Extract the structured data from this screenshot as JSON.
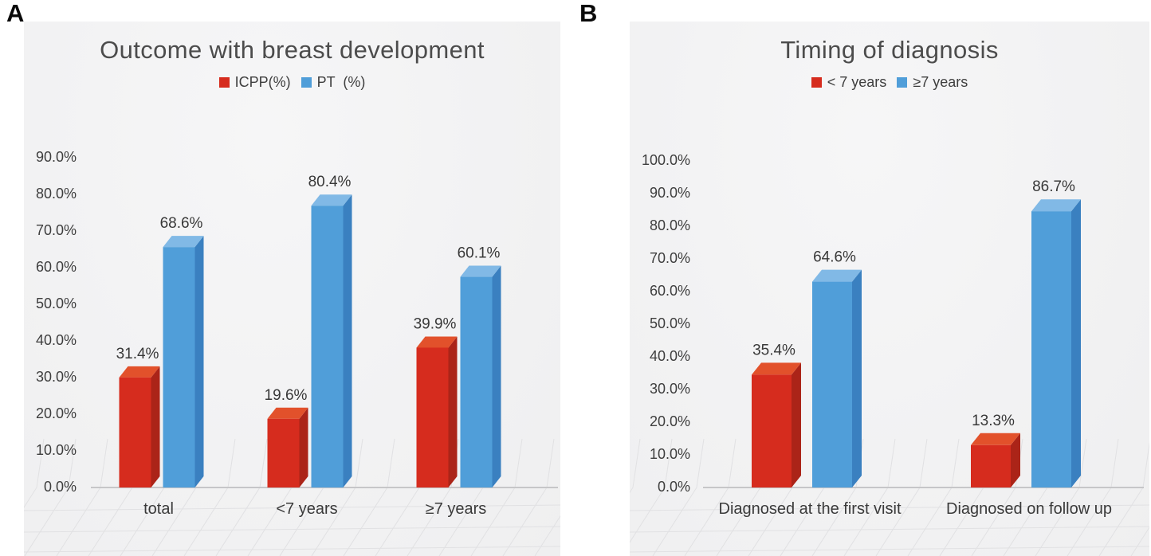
{
  "figure": {
    "panel_letters": [
      "A",
      "B"
    ]
  },
  "chart_data": [
    {
      "type": "bar",
      "style": "3d-column",
      "title": "Outcome with breast development",
      "categories": [
        "total",
        "<7 years",
        "≥7 years"
      ],
      "series": [
        {
          "name": "ICPP(%)",
          "color": "#d62c1e",
          "color_top": "#e2512b",
          "color_side": "#ab2418",
          "values": [
            31.4,
            19.6,
            39.9
          ]
        },
        {
          "name": "PT  (%)",
          "color": "#509ed9",
          "color_top": "#81b9e6",
          "color_side": "#3a80c0",
          "values": [
            68.6,
            80.4,
            60.1
          ]
        }
      ],
      "value_labels": [
        [
          "31.4%",
          "19.6%",
          "39.9%"
        ],
        [
          "68.6%",
          "80.4%",
          "60.1%"
        ]
      ],
      "ticks": [
        "90.0%",
        "80.0%",
        "70.0%",
        "60.0%",
        "50.0%",
        "40.0%",
        "30.0%",
        "20.0%",
        "10.0%",
        "0.0%"
      ],
      "axis": {
        "ymin": 0,
        "ymax": 90,
        "ystep": 10,
        "format": "percent-1dp"
      },
      "xlabel": "",
      "ylabel": "",
      "legend_position": "top",
      "grid": "perspective-floor"
    },
    {
      "type": "bar",
      "style": "3d-column",
      "title": "Timing of diagnosis",
      "categories": [
        "Diagnosed at the first visit",
        "Diagnosed on follow up"
      ],
      "series": [
        {
          "name": "< 7 years",
          "color": "#d62c1e",
          "color_top": "#e2512b",
          "color_side": "#ab2418",
          "values": [
            35.4,
            13.3
          ]
        },
        {
          "name": "≥7 years",
          "color": "#509ed9",
          "color_top": "#81b9e6",
          "color_side": "#3a80c0",
          "values": [
            64.6,
            86.7
          ]
        }
      ],
      "value_labels": [
        [
          "35.4%",
          "13.3%"
        ],
        [
          "64.6%",
          "86.7%"
        ]
      ],
      "ticks": [
        "100.0%",
        "90.0%",
        "80.0%",
        "70.0%",
        "60.0%",
        "50.0%",
        "40.0%",
        "30.0%",
        "20.0%",
        "10.0%",
        "0.0%"
      ],
      "axis": {
        "ymin": 0,
        "ymax": 100,
        "ystep": 10,
        "format": "percent-1dp"
      },
      "xlabel": "",
      "ylabel": "",
      "legend_position": "top",
      "grid": "perspective-floor"
    }
  ],
  "colors": {
    "panel_background": "#f2f2f3",
    "grid_line": "#e1e1e3",
    "baseline": "#c6c6c8",
    "title_text": "#4c4c4c",
    "label_text": "#3e3e3e",
    "red": "#d62c1e",
    "blue": "#509ed9"
  }
}
